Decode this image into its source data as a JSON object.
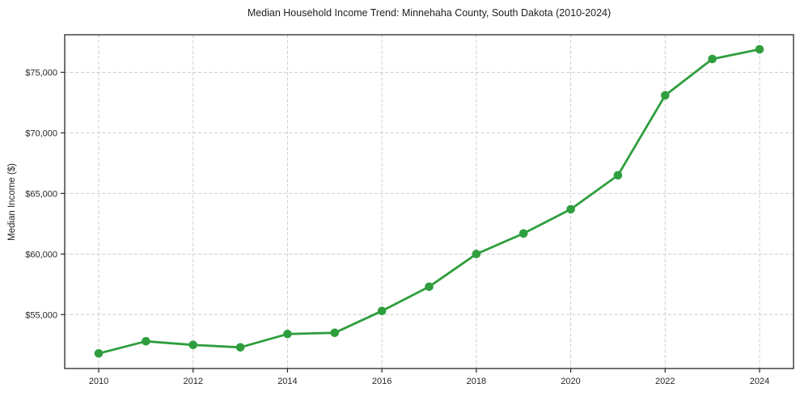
{
  "chart_data": {
    "type": "line",
    "title": "Median Household Income Trend: Minnehaha County, South Dakota (2010-2024)",
    "xlabel": "",
    "ylabel": "Median Income ($)",
    "x": [
      2010,
      2011,
      2012,
      2013,
      2014,
      2015,
      2016,
      2017,
      2018,
      2019,
      2020,
      2021,
      2022,
      2023,
      2024
    ],
    "series": [
      {
        "name": "Median Household Income",
        "values": [
          51800,
          52800,
          52500,
          52300,
          53400,
          53500,
          55300,
          57300,
          60000,
          61700,
          63700,
          66500,
          73100,
          76100,
          76900
        ]
      }
    ],
    "xlim": [
      2009.28,
      2024.72
    ],
    "ylim": [
      50550,
      78100
    ],
    "xticks": [
      2010,
      2012,
      2014,
      2016,
      2018,
      2020,
      2022,
      2024
    ],
    "xtick_labels": [
      "2010",
      "2012",
      "2014",
      "2016",
      "2018",
      "2020",
      "2022",
      "2024"
    ],
    "yticks": [
      55000,
      60000,
      65000,
      70000,
      75000
    ],
    "ytick_labels": [
      "$55,000",
      "$60,000",
      "$65,000",
      "$70,000",
      "$75,000"
    ],
    "grid": true,
    "grid_style": "dashed",
    "legend": "none",
    "marker": "circle"
  },
  "style": {
    "line_color": "#2f9e3e",
    "marker_color": "#2f9e3e",
    "grid_color": "#cccccc",
    "axis_color": "#262626",
    "text_color": "#262626",
    "background": "#ffffff"
  }
}
